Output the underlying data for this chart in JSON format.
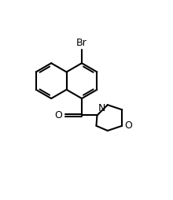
{
  "bg_color": "#ffffff",
  "bond_color": "#000000",
  "bond_width": 1.5,
  "figsize": [
    2.2,
    2.54
  ],
  "dpi": 100,
  "xlim": [
    0,
    11
  ],
  "ylim": [
    0,
    12.7
  ]
}
